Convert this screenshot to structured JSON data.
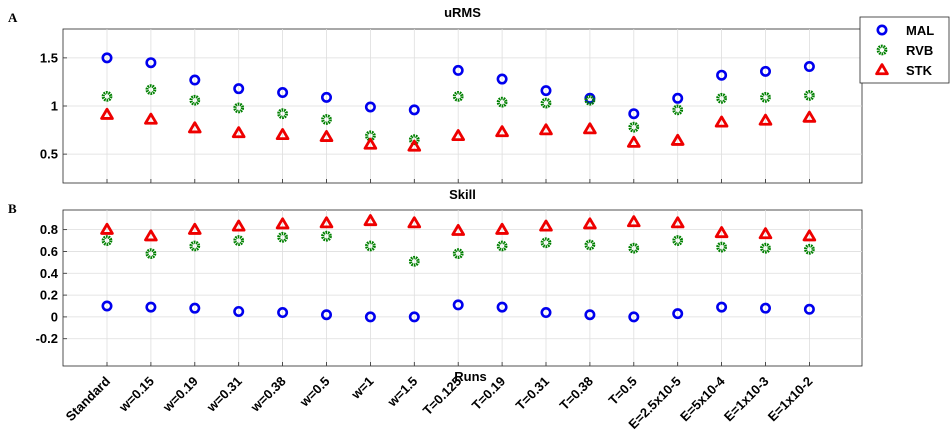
{
  "chart_data": [
    {
      "type": "scatter",
      "panel_label": "A",
      "title": "uRMS",
      "xlabel": "",
      "ylabel": "",
      "ylim": [
        0.2,
        1.8
      ],
      "yticks": [
        0.5,
        1,
        1.5
      ],
      "ytick_labels": [
        "0.5",
        "1",
        "1.5"
      ],
      "grid": true,
      "categories": [
        "Standard",
        "w=0.15",
        "w=0.19",
        "w=0.31",
        "w=0.38",
        "w=0.5",
        "w=1",
        "w=1.5",
        "T=0.125",
        "T=0.19",
        "T=0.31",
        "T=0.38",
        "T=0.5",
        "E=2.5x10-5",
        "E=5x10-4",
        "E=1x10-3",
        "E=1x10-2"
      ],
      "series": [
        {
          "name": "MAL",
          "color": "#0000ee",
          "marker": "circle",
          "values": [
            1.5,
            1.45,
            1.27,
            1.18,
            1.14,
            1.09,
            0.99,
            0.96,
            1.37,
            1.28,
            1.16,
            1.08,
            0.92,
            1.08,
            1.32,
            1.36,
            1.41
          ]
        },
        {
          "name": "RVB",
          "color": "#008000",
          "marker": "gear",
          "values": [
            1.1,
            1.17,
            1.06,
            0.98,
            0.92,
            0.86,
            0.69,
            0.65,
            1.1,
            1.04,
            1.03,
            1.06,
            0.78,
            0.96,
            1.08,
            1.09,
            1.11
          ]
        },
        {
          "name": "STK",
          "color": "#ee0000",
          "marker": "triangle",
          "values": [
            0.91,
            0.86,
            0.77,
            0.72,
            0.7,
            0.68,
            0.6,
            0.58,
            0.69,
            0.73,
            0.75,
            0.76,
            0.62,
            0.64,
            0.83,
            0.85,
            0.88
          ]
        }
      ]
    },
    {
      "type": "scatter",
      "panel_label": "B",
      "title": "Skill",
      "xlabel": "Runs",
      "ylabel": "",
      "ylim": [
        -0.45,
        0.98
      ],
      "yticks": [
        -0.2,
        0,
        0.2,
        0.4,
        0.6,
        0.8
      ],
      "ytick_labels": [
        "-0.2",
        "0",
        "0.2",
        "0.4",
        "0.6",
        "0.8"
      ],
      "grid": true,
      "categories": [
        "Standard",
        "w=0.15",
        "w=0.19",
        "w=0.31",
        "w=0.38",
        "w=0.5",
        "w=1",
        "w=1.5",
        "T=0.125",
        "T=0.19",
        "T=0.31",
        "T=0.38",
        "T=0.5",
        "E=2.5x10-5",
        "E=5x10-4",
        "E=1x10-3",
        "E=1x10-2"
      ],
      "series": [
        {
          "name": "MAL",
          "color": "#0000ee",
          "marker": "circle",
          "values": [
            0.1,
            0.09,
            0.08,
            0.05,
            0.04,
            0.02,
            0.0,
            0.0,
            0.11,
            0.09,
            0.04,
            0.02,
            0.0,
            0.03,
            0.09,
            0.08,
            0.07
          ]
        },
        {
          "name": "RVB",
          "color": "#008000",
          "marker": "gear",
          "values": [
            0.7,
            0.58,
            0.65,
            0.7,
            0.73,
            0.74,
            0.65,
            0.51,
            0.58,
            0.65,
            0.68,
            0.66,
            0.63,
            0.7,
            0.64,
            0.63,
            0.62
          ]
        },
        {
          "name": "STK",
          "color": "#ee0000",
          "marker": "triangle",
          "values": [
            0.8,
            0.74,
            0.8,
            0.83,
            0.85,
            0.86,
            0.88,
            0.86,
            0.79,
            0.8,
            0.83,
            0.85,
            0.87,
            0.86,
            0.77,
            0.76,
            0.74
          ]
        }
      ]
    }
  ],
  "legend": {
    "placement": "top-right",
    "entries": [
      {
        "name": "MAL",
        "color": "#0000ee",
        "marker": "circle"
      },
      {
        "name": "RVB",
        "color": "#008000",
        "marker": "gear"
      },
      {
        "name": "STK",
        "color": "#ee0000",
        "marker": "triangle"
      }
    ]
  }
}
